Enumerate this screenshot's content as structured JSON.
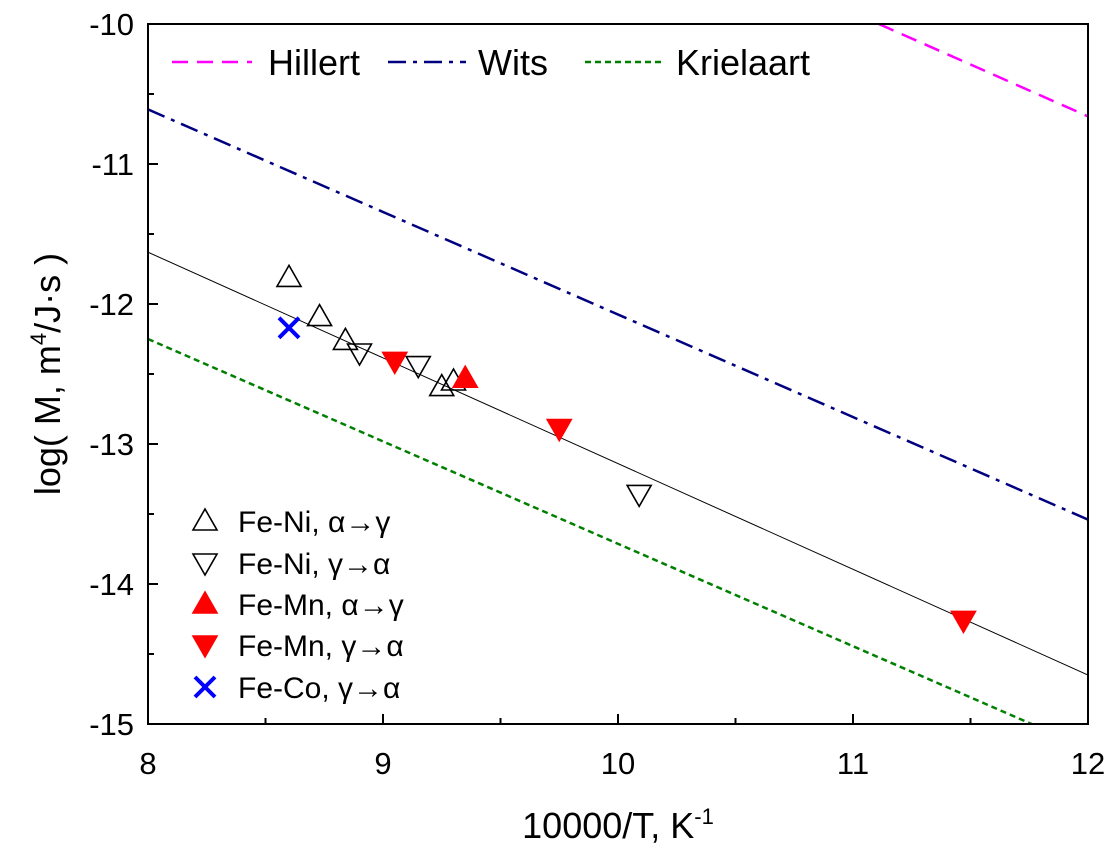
{
  "chart_data": {
    "type": "scatter",
    "xlabel": {
      "text": "10000/T, K",
      "sup": "-1"
    },
    "ylabel": {
      "pre": "log( M, m",
      "sup": "4",
      "post": "/J·s )"
    },
    "xlim": [
      8,
      12
    ],
    "ylim": [
      -15,
      -10
    ],
    "xticks": [
      {
        "value": 8,
        "label": "8"
      },
      {
        "value": 9,
        "label": "9"
      },
      {
        "value": 10,
        "label": "10"
      },
      {
        "value": 11,
        "label": "11"
      },
      {
        "value": 12,
        "label": "12"
      }
    ],
    "yticks": [
      {
        "value": -10,
        "label": "-10"
      },
      {
        "value": -11,
        "label": "-11"
      },
      {
        "value": -12,
        "label": "-12"
      },
      {
        "value": -13,
        "label": "-13"
      },
      {
        "value": -14,
        "label": "-14"
      },
      {
        "value": -15,
        "label": "-15"
      }
    ],
    "minor_ticks": true,
    "grid": false,
    "lines": [
      {
        "name": "Hillert",
        "style": "dashed",
        "color": "#ff00ff",
        "x": [
          11.11,
          12
        ],
        "y": [
          -10,
          -10.66
        ]
      },
      {
        "name": "Wits",
        "style": "dash-dot",
        "color": "#000080",
        "x": [
          8,
          12
        ],
        "y": [
          -10.61,
          -13.54
        ]
      },
      {
        "name": "Krielaart",
        "style": "dotted",
        "color": "#008000",
        "x": [
          8,
          11.76
        ],
        "y": [
          -12.25,
          -15
        ]
      },
      {
        "style": "solid",
        "color": "#000000",
        "x": [
          8,
          12
        ],
        "y": [
          -11.63,
          -14.65
        ]
      }
    ],
    "series": [
      {
        "name": "Fe-Ni, α→γ",
        "marker": "triangle-up-open",
        "color": "#000000",
        "x": [
          8.6,
          8.73,
          8.84,
          9.25,
          9.3
        ],
        "y": [
          -11.81,
          -12.09,
          -12.26,
          -12.59,
          -12.55
        ]
      },
      {
        "name": "Fe-Ni, γ→α",
        "marker": "triangle-down-open",
        "color": "#000000",
        "x": [
          8.9,
          9.15,
          10.09
        ],
        "y": [
          -12.35,
          -12.44,
          -13.36
        ]
      },
      {
        "name": "Fe-Mn, α→γ",
        "marker": "triangle-up-filled",
        "color": "#ff0000",
        "x": [
          9.35
        ],
        "y": [
          -12.53
        ]
      },
      {
        "name": "Fe-Mn, γ→α",
        "marker": "triangle-down-filled",
        "color": "#ff0000",
        "x": [
          9.05,
          9.75,
          11.47
        ],
        "y": [
          -12.41,
          -12.89,
          -14.26
        ]
      },
      {
        "name": "Fe-Co, γ→α",
        "marker": "cross",
        "color": "#0000ff",
        "x": [
          8.6
        ],
        "y": [
          -12.17
        ]
      }
    ],
    "line_legend_position": "top",
    "marker_legend_position": "bottom-left"
  }
}
